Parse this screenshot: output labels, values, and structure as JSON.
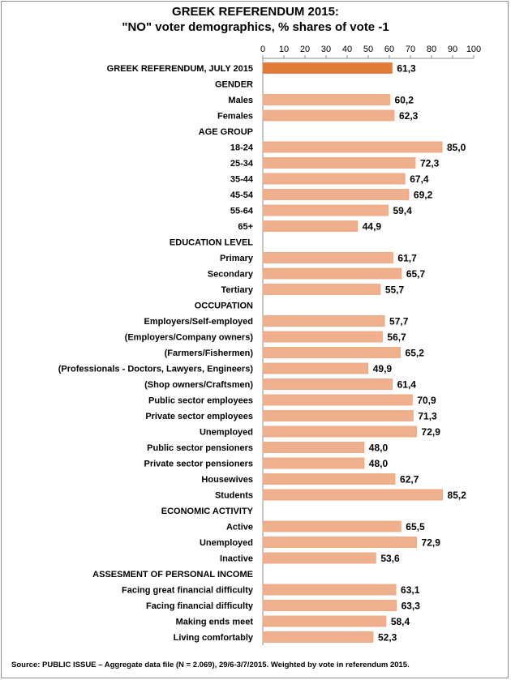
{
  "chart_data": {
    "type": "bar",
    "orientation": "horizontal",
    "title": "GREEK REFERENDUM 2015:",
    "subtitle": "\"NO\" voter demographics, % shares of vote -1",
    "xlim": [
      0,
      100
    ],
    "xticks": [
      0,
      10,
      20,
      30,
      40,
      50,
      60,
      70,
      80,
      90,
      100
    ],
    "xaxis_position": "top",
    "grid": false,
    "colors": {
      "highlight": "#e07b39",
      "bar": "#f0b08e",
      "bar_stroke": "#e9a47f"
    },
    "rows": [
      {
        "label": "GREEK REFERENDUM, JULY 2015",
        "value": 61.3,
        "display": "61,3",
        "kind": "highlight"
      },
      {
        "label": "GENDER",
        "value": null,
        "kind": "header"
      },
      {
        "label": "Males",
        "value": 60.2,
        "display": "60,2",
        "kind": "bar"
      },
      {
        "label": "Females",
        "value": 62.3,
        "display": "62,3",
        "kind": "bar"
      },
      {
        "label": "AGE GROUP",
        "value": null,
        "kind": "header"
      },
      {
        "label": "18-24",
        "value": 85.0,
        "display": "85,0",
        "kind": "bar"
      },
      {
        "label": "25-34",
        "value": 72.3,
        "display": "72,3",
        "kind": "bar"
      },
      {
        "label": "35-44",
        "value": 67.4,
        "display": "67,4",
        "kind": "bar"
      },
      {
        "label": "45-54",
        "value": 69.2,
        "display": "69,2",
        "kind": "bar"
      },
      {
        "label": "55-64",
        "value": 59.4,
        "display": "59,4",
        "kind": "bar"
      },
      {
        "label": "65+",
        "value": 44.9,
        "display": "44,9",
        "kind": "bar"
      },
      {
        "label": "EDUCATION LEVEL",
        "value": null,
        "kind": "header"
      },
      {
        "label": "Primary",
        "value": 61.7,
        "display": "61,7",
        "kind": "bar"
      },
      {
        "label": "Secondary",
        "value": 65.7,
        "display": "65,7",
        "kind": "bar"
      },
      {
        "label": "Tertiary",
        "value": 55.7,
        "display": "55,7",
        "kind": "bar"
      },
      {
        "label": "OCCUPATION",
        "value": null,
        "kind": "header"
      },
      {
        "label": "Employers/Self-employed",
        "value": 57.7,
        "display": "57,7",
        "kind": "bar"
      },
      {
        "label": "(Employers/Company owners)",
        "value": 56.7,
        "display": "56,7",
        "kind": "bar"
      },
      {
        "label": "(Farmers/Fishermen)",
        "value": 65.2,
        "display": "65,2",
        "kind": "bar"
      },
      {
        "label": "(Professionals - Doctors, Lawyers, Engineers)",
        "value": 49.9,
        "display": "49,9",
        "kind": "bar"
      },
      {
        "label": "(Shop owners/Craftsmen)",
        "value": 61.4,
        "display": "61,4",
        "kind": "bar"
      },
      {
        "label": "Public sector employees",
        "value": 70.9,
        "display": "70,9",
        "kind": "bar"
      },
      {
        "label": "Private sector employees",
        "value": 71.3,
        "display": "71,3",
        "kind": "bar"
      },
      {
        "label": "Unemployed",
        "value": 72.9,
        "display": "72,9",
        "kind": "bar"
      },
      {
        "label": "Public sector pensioners",
        "value": 48.0,
        "display": "48,0",
        "kind": "bar"
      },
      {
        "label": "Private sector pensioners",
        "value": 48.0,
        "display": "48,0",
        "kind": "bar"
      },
      {
        "label": "Housewives",
        "value": 62.7,
        "display": "62,7",
        "kind": "bar"
      },
      {
        "label": "Students",
        "value": 85.2,
        "display": "85,2",
        "kind": "bar"
      },
      {
        "label": "ECONOMIC ACTIVITY",
        "value": null,
        "kind": "header"
      },
      {
        "label": "Active",
        "value": 65.5,
        "display": "65,5",
        "kind": "bar"
      },
      {
        "label": "Unemployed",
        "value": 72.9,
        "display": "72,9",
        "kind": "bar"
      },
      {
        "label": "Inactive",
        "value": 53.6,
        "display": "53,6",
        "kind": "bar"
      },
      {
        "label": "ASSESMENT OF PERSONAL INCOME",
        "value": null,
        "kind": "header"
      },
      {
        "label": "Facing great financial difficulty",
        "value": 63.1,
        "display": "63,1",
        "kind": "bar"
      },
      {
        "label": "Facing financial difficulty",
        "value": 63.3,
        "display": "63,3",
        "kind": "bar"
      },
      {
        "label": "Making ends meet",
        "value": 58.4,
        "display": "58,4",
        "kind": "bar"
      },
      {
        "label": "Living comfortably",
        "value": 52.3,
        "display": "52,3",
        "kind": "bar"
      }
    ]
  },
  "source": "Source: PUBLIC ISSUE – Aggregate data file (N = 2.069),  29/6-3/7/2015. Weighted by vote in referendum 2015."
}
